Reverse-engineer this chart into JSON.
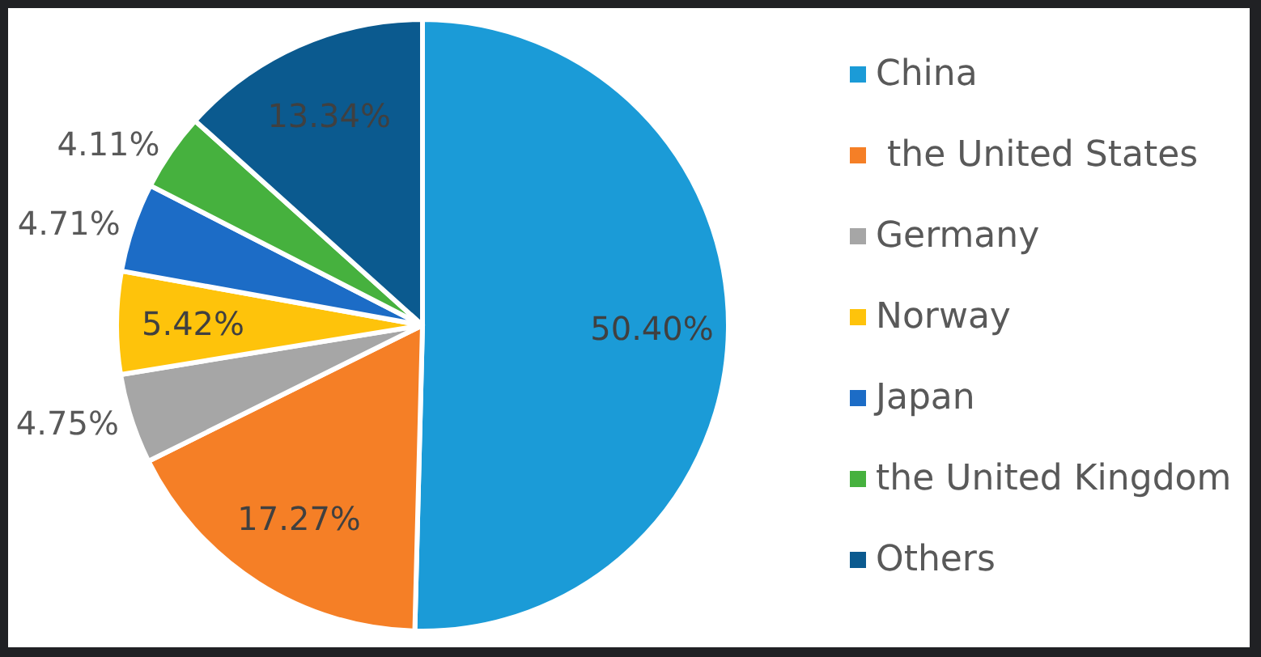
{
  "chart_data": {
    "type": "pie",
    "categories": [
      "China",
      " the United States",
      "Germany",
      "Norway",
      "Japan",
      "the United Kingdom",
      "Others"
    ],
    "values": [
      50.4,
      17.27,
      4.75,
      5.42,
      4.71,
      4.11,
      13.34
    ],
    "colors": [
      "#1b9bd7",
      "#f57f26",
      "#a6a6a6",
      "#fec30b",
      "#1c6cc6",
      "#46b13e",
      "#0b5a8f"
    ],
    "value_labels": [
      "50.40%",
      "17.27%",
      "4.75%",
      "5.42%",
      "4.71%",
      "4.11%",
      "13.34%"
    ],
    "legend": "right"
  }
}
